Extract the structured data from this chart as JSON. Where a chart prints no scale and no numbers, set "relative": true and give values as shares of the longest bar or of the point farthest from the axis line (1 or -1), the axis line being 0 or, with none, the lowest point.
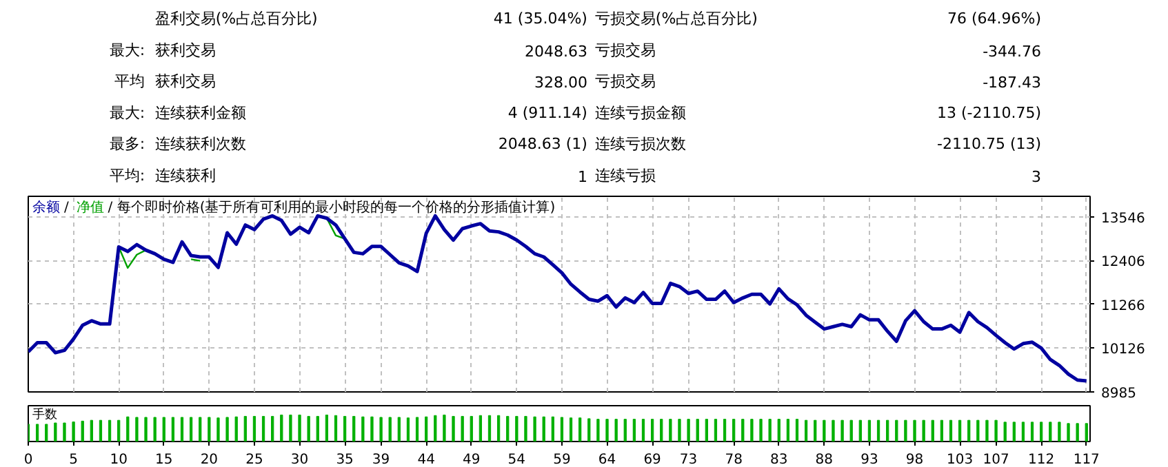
{
  "chart_data": [
    {
      "type": "other",
      "annotations": [
        "盈利交易(%占总百分比)",
        "41 (35.04%)",
        "亏损交易(%占总百分比)",
        "76 (64.96%)",
        "最大:",
        "获利交易",
        "2048.63",
        "亏损交易",
        "-344.76",
        "平均",
        "获利交易",
        "328.00",
        "亏损交易",
        "-187.43",
        "最大:",
        "连续获利金额",
        "4 (911.14)",
        "连续亏损金额",
        "13 (-2110.75)",
        "最多:",
        "连续获利次数",
        "2048.63 (1)",
        "连续亏损次数",
        "-2110.75 (13)",
        "平均:",
        "连续获利",
        "1",
        "连续亏损",
        "3"
      ]
    },
    {
      "type": "line",
      "annotations": [
        "/",
        "/ 每个即时价格(基于所有可利用的最小时段的每一个价格的分形插值计算)"
      ],
      "legend": "top left",
      "grid": true,
      "tick_labels": "y",
      "xlim": [
        0,
        117.4
      ],
      "ylim": [
        8985,
        14080
      ],
      "xticks": [
        0,
        5,
        10,
        15,
        20,
        25,
        30,
        35,
        39,
        44,
        49,
        54,
        59,
        64,
        69,
        73,
        78,
        83,
        88,
        93,
        98,
        103,
        107,
        112,
        117
      ],
      "yticks": [
        8985,
        10126,
        11266,
        12406,
        13546
      ],
      "x": [
        0,
        1,
        2,
        3,
        4,
        5,
        6,
        7,
        8,
        9,
        10,
        11,
        12,
        13,
        14,
        15,
        16,
        17,
        18,
        19,
        20,
        21,
        22,
        23,
        24,
        25,
        26,
        27,
        28,
        29,
        30,
        31,
        32,
        33,
        34,
        35,
        36,
        37,
        38,
        39,
        40,
        41,
        42,
        43,
        44,
        45,
        46,
        47,
        48,
        49,
        50,
        51,
        52,
        53,
        54,
        55,
        56,
        57,
        58,
        59,
        60,
        61,
        62,
        63,
        64,
        65,
        66,
        67,
        68,
        69,
        70,
        71,
        72,
        73,
        74,
        75,
        76,
        77,
        78,
        79,
        80,
        81,
        82,
        83,
        84,
        85,
        86,
        87,
        88,
        89,
        90,
        91,
        92,
        93,
        94,
        95,
        96,
        97,
        98,
        99,
        100,
        101,
        102,
        103,
        104,
        105,
        106,
        107,
        108,
        109,
        110,
        111,
        112,
        113,
        114,
        115,
        116,
        117
      ],
      "series": [
        {
          "name": "余额",
          "color": "#0000a0",
          "values": [
            10031,
            10268,
            10268,
            10007,
            10067,
            10364,
            10720,
            10839,
            10755,
            10755,
            12762,
            12643,
            12822,
            12679,
            12584,
            12442,
            12359,
            12893,
            12537,
            12501,
            12501,
            12228,
            13130,
            12833,
            13332,
            13213,
            13487,
            13570,
            13451,
            13095,
            13273,
            13130,
            13570,
            13510,
            13332,
            12976,
            12620,
            12584,
            12774,
            12774,
            12560,
            12347,
            12264,
            12121,
            13118,
            13570,
            13213,
            12940,
            13237,
            13308,
            13368,
            13178,
            13154,
            13071,
            12940,
            12774,
            12584,
            12501,
            12299,
            12086,
            11789,
            11587,
            11397,
            11349,
            11492,
            11195,
            11432,
            11313,
            11575,
            11290,
            11290,
            11812,
            11729,
            11551,
            11610,
            11397,
            11397,
            11610,
            11313,
            11432,
            11527,
            11527,
            11278,
            11670,
            11409,
            11254,
            10981,
            10803,
            10625,
            10684,
            10744,
            10684,
            10993,
            10862,
            10862,
            10565,
            10304,
            10839,
            11100,
            10815,
            10625,
            10625,
            10720,
            10542,
            11052,
            10815,
            10661,
            10459,
            10268,
            10102,
            10245,
            10280,
            10126,
            9829,
            9675,
            9449,
            9295,
            9271
          ]
        },
        {
          "name": "净值",
          "color": "#00a000",
          "values": [
            null,
            null,
            null,
            null,
            null,
            null,
            null,
            null,
            null,
            null,
            12762,
            12216,
            12560,
            12679,
            null,
            null,
            null,
            null,
            12440,
            12400,
            null,
            null,
            null,
            null,
            null,
            null,
            null,
            null,
            null,
            null,
            null,
            null,
            null,
            13510,
            13059,
            12976,
            null,
            null,
            null,
            null,
            null,
            null,
            null,
            null,
            null,
            null,
            null,
            null,
            null,
            null,
            null,
            null,
            null,
            null,
            null,
            null,
            null,
            null,
            null,
            null,
            null,
            null,
            null,
            null,
            null,
            null,
            null,
            null,
            null,
            null,
            null,
            null,
            null,
            null,
            null,
            null,
            null,
            null,
            null,
            null,
            null,
            null,
            null,
            null,
            null,
            null,
            null,
            null,
            null,
            null,
            null,
            null,
            null,
            null,
            null,
            null,
            null,
            null,
            null,
            null,
            null,
            null,
            null,
            null,
            null,
            null,
            null,
            null,
            null,
            null,
            null,
            null,
            null,
            null,
            null,
            null,
            null,
            null
          ]
        }
      ]
    },
    {
      "type": "bar",
      "title": "手数",
      "relative": true,
      "color": "#00b000",
      "xlim": [
        0,
        117.4
      ],
      "xticks": [
        0,
        5,
        10,
        15,
        20,
        25,
        30,
        35,
        39,
        44,
        49,
        54,
        59,
        64,
        69,
        73,
        78,
        83,
        88,
        93,
        98,
        103,
        107,
        112,
        117
      ],
      "x": [
        0,
        1,
        2,
        3,
        4,
        5,
        6,
        7,
        8,
        9,
        10,
        11,
        12,
        13,
        14,
        15,
        16,
        17,
        18,
        19,
        20,
        21,
        22,
        23,
        24,
        25,
        26,
        27,
        28,
        29,
        30,
        31,
        32,
        33,
        34,
        35,
        36,
        37,
        38,
        39,
        40,
        41,
        42,
        43,
        44,
        45,
        46,
        47,
        48,
        49,
        50,
        51,
        52,
        53,
        54,
        55,
        56,
        57,
        58,
        59,
        60,
        61,
        62,
        63,
        64,
        65,
        66,
        67,
        68,
        69,
        70,
        71,
        72,
        73,
        74,
        75,
        76,
        77,
        78,
        79,
        80,
        81,
        82,
        83,
        84,
        85,
        86,
        87,
        88,
        89,
        90,
        91,
        92,
        93,
        94,
        95,
        96,
        97,
        98,
        99,
        100,
        101,
        102,
        103,
        104,
        105,
        106,
        107,
        108,
        109,
        110,
        111,
        112,
        113,
        114,
        115,
        116,
        117
      ],
      "values": [
        0.65,
        0.65,
        0.65,
        0.7,
        0.7,
        0.74,
        0.77,
        0.8,
        0.8,
        0.8,
        0.8,
        0.93,
        0.91,
        0.91,
        0.91,
        0.91,
        0.91,
        0.91,
        0.91,
        0.91,
        0.91,
        0.89,
        0.91,
        0.93,
        0.95,
        0.95,
        0.95,
        0.95,
        1,
        1,
        1,
        0.95,
        0.95,
        1,
        0.98,
        0.95,
        0.95,
        0.93,
        0.93,
        0.91,
        0.91,
        0.91,
        0.89,
        0.91,
        0.93,
        0.98,
        1,
        0.95,
        0.95,
        0.95,
        0.98,
        0.98,
        0.98,
        0.95,
        0.95,
        0.95,
        0.93,
        0.93,
        0.93,
        0.91,
        0.89,
        0.89,
        0.86,
        0.84,
        0.84,
        0.84,
        0.84,
        0.84,
        0.84,
        0.84,
        0.84,
        0.84,
        0.84,
        0.84,
        0.84,
        0.84,
        0.84,
        0.84,
        0.84,
        0.84,
        0.84,
        0.84,
        0.84,
        0.84,
        0.84,
        0.84,
        0.8,
        0.8,
        0.8,
        0.8,
        0.8,
        0.8,
        0.8,
        0.8,
        0.8,
        0.8,
        0.8,
        0.8,
        0.8,
        0.8,
        0.8,
        0.8,
        0.8,
        0.8,
        0.8,
        0.8,
        0.8,
        0.8,
        0.73,
        0.73,
        0.73,
        0.73,
        0.73,
        0.73,
        0.73,
        0.68,
        0.68,
        0.68
      ]
    }
  ]
}
